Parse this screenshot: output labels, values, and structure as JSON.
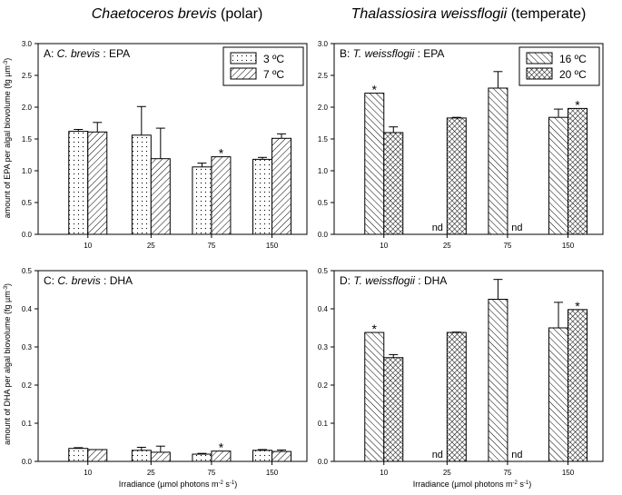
{
  "figure": {
    "column_titles": [
      {
        "species": "Chaetoceros brevis",
        "qualifier": "(polar)"
      },
      {
        "species": "Thalassiosira weissflogii",
        "qualifier": "(temperate)"
      }
    ],
    "ylabel_epa": {
      "prefix": "amount of EPA per algal biovolume (fg µm",
      "exp": "-3",
      "suffix": ")"
    },
    "ylabel_dha": {
      "prefix": "amount of DHA per algal biovolume (fg µm",
      "exp": "-3",
      "suffix": ")"
    },
    "xlabel": {
      "a": "Irradiance (µmol photons m",
      "e1": "-2",
      "b": " s",
      "e2": "-1",
      "c": ")"
    }
  },
  "chart_data": [
    {
      "id": "A",
      "type": "bar",
      "panel_letter": "A:",
      "species_short": "C. brevis",
      "fatty_acid": ": EPA",
      "categories": [
        "10",
        "25",
        "75",
        "150"
      ],
      "ylim": [
        0,
        3.0
      ],
      "yticks": [
        "0.0",
        "0.5",
        "1.0",
        "1.5",
        "2.0",
        "2.5",
        "3.0"
      ],
      "legend": {
        "position": "top-right"
      },
      "series": [
        {
          "name": "3 ºC",
          "pattern": "dots",
          "values": [
            1.62,
            1.56,
            1.06,
            1.18
          ],
          "errors": [
            0.03,
            0.45,
            0.06,
            0.03
          ],
          "nd": [
            false,
            false,
            false,
            false
          ],
          "stars": [
            false,
            false,
            false,
            false
          ]
        },
        {
          "name": "7 ºC",
          "pattern": "hatch-right",
          "values": [
            1.61,
            1.19,
            1.22,
            1.51
          ],
          "errors": [
            0.15,
            0.48,
            0.0,
            0.07
          ],
          "nd": [
            false,
            false,
            false,
            false
          ],
          "stars": [
            false,
            false,
            true,
            false
          ]
        }
      ]
    },
    {
      "id": "B",
      "type": "bar",
      "panel_letter": "B:",
      "species_short": "T. weissflogii",
      "fatty_acid": ": EPA",
      "categories": [
        "10",
        "25",
        "75",
        "150"
      ],
      "ylim": [
        0,
        3.0
      ],
      "yticks": [
        "0.0",
        "0.5",
        "1.0",
        "1.5",
        "2.0",
        "2.5",
        "3.0"
      ],
      "legend": {
        "position": "top-right"
      },
      "series": [
        {
          "name": "16 ºC",
          "pattern": "hatch-left",
          "values": [
            2.22,
            0,
            2.3,
            1.84
          ],
          "errors": [
            0.0,
            0,
            0.26,
            0.13
          ],
          "nd": [
            false,
            true,
            false,
            false
          ],
          "stars": [
            true,
            false,
            false,
            false
          ]
        },
        {
          "name": "20 ºC",
          "pattern": "crosshatch",
          "values": [
            1.6,
            1.83,
            0,
            1.98
          ],
          "errors": [
            0.09,
            0.01,
            0,
            0.0
          ],
          "nd": [
            false,
            false,
            true,
            false
          ],
          "stars": [
            false,
            false,
            false,
            true
          ]
        }
      ],
      "nd_label": "nd",
      "star_label": "*"
    },
    {
      "id": "C",
      "type": "bar",
      "panel_letter": "C:",
      "species_short": "C. brevis",
      "fatty_acid": ": DHA",
      "categories": [
        "10",
        "25",
        "75",
        "150"
      ],
      "ylim": [
        0,
        0.5
      ],
      "yticks": [
        "0.0",
        "0.1",
        "0.2",
        "0.3",
        "0.4",
        "0.5"
      ],
      "series": [
        {
          "name": "3 ºC",
          "pattern": "dots",
          "values": [
            0.034,
            0.029,
            0.019,
            0.029
          ],
          "errors": [
            0.002,
            0.008,
            0.002,
            0.002
          ],
          "nd": [
            false,
            false,
            false,
            false
          ],
          "stars": [
            false,
            false,
            false,
            false
          ]
        },
        {
          "name": "7 ºC",
          "pattern": "hatch-right",
          "values": [
            0.031,
            0.024,
            0.027,
            0.026
          ],
          "errors": [
            0.0,
            0.016,
            0.0,
            0.004
          ],
          "nd": [
            false,
            false,
            false,
            false
          ],
          "stars": [
            false,
            false,
            true,
            false
          ]
        }
      ]
    },
    {
      "id": "D",
      "type": "bar",
      "panel_letter": "D:",
      "species_short": "T. weissflogii",
      "fatty_acid": ": DHA",
      "categories": [
        "10",
        "25",
        "75",
        "150"
      ],
      "ylim": [
        0,
        0.5
      ],
      "yticks": [
        "0.0",
        "0.1",
        "0.2",
        "0.3",
        "0.4",
        "0.5"
      ],
      "series": [
        {
          "name": "16 ºC",
          "pattern": "hatch-left",
          "values": [
            0.338,
            0,
            0.425,
            0.35
          ],
          "errors": [
            0.0,
            0,
            0.052,
            0.067
          ],
          "nd": [
            false,
            true,
            false,
            false
          ],
          "stars": [
            true,
            false,
            false,
            false
          ]
        },
        {
          "name": "20 ºC",
          "pattern": "crosshatch",
          "values": [
            0.272,
            0.338,
            0,
            0.398
          ],
          "errors": [
            0.008,
            0.001,
            0,
            0.0
          ],
          "nd": [
            false,
            false,
            true,
            false
          ],
          "stars": [
            false,
            false,
            false,
            true
          ]
        }
      ],
      "nd_label": "nd",
      "star_label": "*"
    }
  ]
}
